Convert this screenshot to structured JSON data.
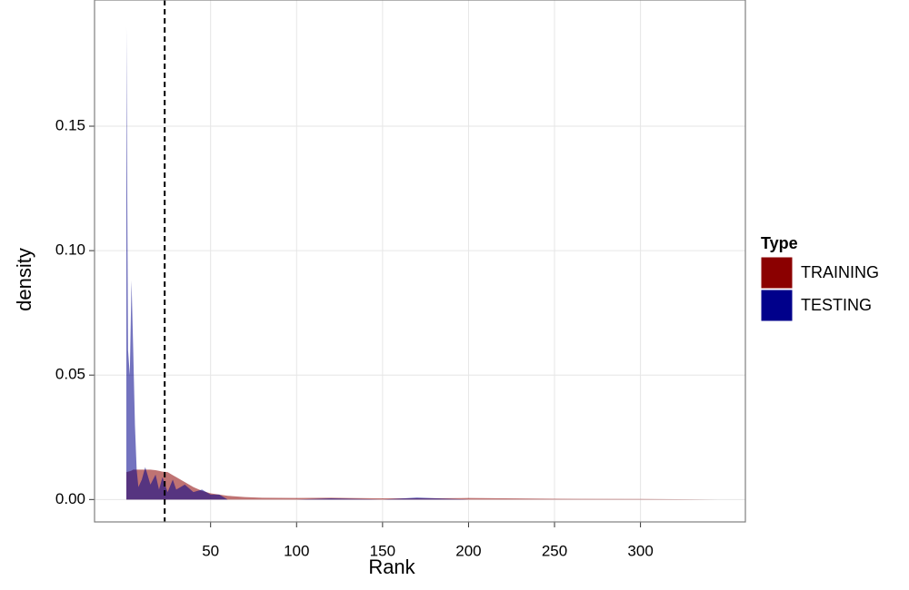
{
  "chart_data": {
    "type": "area",
    "x_label": "Rank",
    "y_label": "density",
    "legend_title": "Type",
    "legend_position": "right",
    "grid": true,
    "alpha": 0.55,
    "vline": 23.3,
    "x": [
      1,
      2,
      3,
      4,
      5,
      6,
      7,
      8,
      10,
      12,
      15,
      18,
      20,
      22,
      25,
      28,
      30,
      35,
      40,
      45,
      50,
      55,
      60,
      70,
      80,
      100,
      120,
      150,
      170,
      200,
      250,
      300,
      345
    ],
    "series": [
      {
        "name": "TRAINING",
        "color": "#8b0000",
        "values": [
          0.011,
          0.0112,
          0.0114,
          0.0116,
          0.012,
          0.012,
          0.012,
          0.012,
          0.012,
          0.012,
          0.012,
          0.0118,
          0.0115,
          0.0112,
          0.011,
          0.0098,
          0.009,
          0.007,
          0.005,
          0.0035,
          0.0025,
          0.002,
          0.0015,
          0.001,
          0.0007,
          0.0006,
          0.0007,
          0.0005,
          0.0005,
          0.0006,
          0.0003,
          0.0002,
          0
        ]
      },
      {
        "name": "TESTING",
        "color": "#00008b",
        "values": [
          0.19,
          0.06,
          0.05,
          0.088,
          0.06,
          0.03,
          0.012,
          0.005,
          0.008,
          0.013,
          0.006,
          0.01,
          0.004,
          0.009,
          0.003,
          0.008,
          0.004,
          0.006,
          0.003,
          0.004,
          0.002,
          0.002,
          0,
          0,
          0,
          0,
          0.0005,
          0,
          0.0008,
          0,
          0,
          0,
          0
        ]
      }
    ],
    "xlim": [
      -17.5,
      361
    ],
    "ylim": [
      -0.009,
      0.2007
    ],
    "xticks": [
      50,
      100,
      150,
      200,
      250,
      300
    ],
    "yticks": [
      {
        "value": 0,
        "label": "0.00"
      },
      {
        "value": 0.05,
        "label": "0.05"
      },
      {
        "value": 0.1,
        "label": "0.10"
      },
      {
        "value": 0.15,
        "label": "0.15"
      }
    ]
  }
}
